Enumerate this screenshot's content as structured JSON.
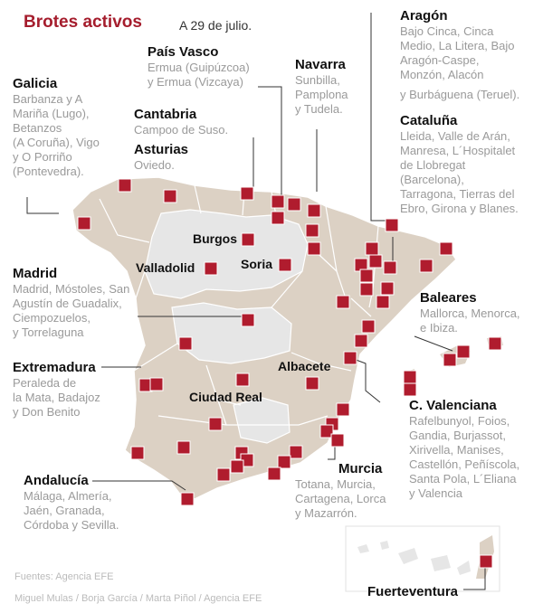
{
  "header": {
    "title": "Brotes activos",
    "date": "A 29 de julio."
  },
  "regions": {
    "aragon": {
      "name": "Aragón",
      "lines": [
        "Bajo Cinca, Cinca",
        "Medio, La Litera, Bajo",
        "Aragón-Caspe,",
        "Monzón, Alacón",
        "y Burbáguena (Teruel)."
      ]
    },
    "cataluna": {
      "name": "Cataluña",
      "lines": [
        "Lleida, Valle de Arán,",
        "Manresa, L´Hospitalet",
        "de Llobregat",
        "(Barcelona),",
        "Tarragona, Tierras del",
        "Ebro, Girona y Blanes."
      ]
    },
    "pais_vasco": {
      "name": "País Vasco",
      "lines": [
        "Ermua (Guipúzcoa)",
        "y Ermua (Vizcaya)"
      ]
    },
    "navarra": {
      "name": "Navarra",
      "lines": [
        "Sunbilla,",
        "Pamplona",
        "y Tudela."
      ]
    },
    "galicia": {
      "name": "Galicia",
      "lines": [
        "Barbanza y A",
        "Mariña (Lugo),",
        "Betanzos",
        "(A Coruña), Vigo",
        "y O Porriño",
        "(Pontevedra)."
      ]
    },
    "cantabria": {
      "name": "Cantabria",
      "lines": [
        "Campoo de Suso."
      ]
    },
    "asturias": {
      "name": "Asturias",
      "lines": [
        "Oviedo."
      ]
    },
    "madrid": {
      "name": "Madrid",
      "lines": [
        "Madrid, Móstoles, San",
        "Agustín de Guadalix,",
        "Ciempozuelos,",
        "y Torrelaguna"
      ]
    },
    "baleares": {
      "name": "Baleares",
      "lines": [
        "Mallorca, Menorca,",
        "e Ibiza."
      ]
    },
    "extremadura": {
      "name": "Extremadura",
      "lines": [
        "Peraleda de",
        "la Mata, Badajoz",
        "y Don Benito"
      ]
    },
    "c_valenciana": {
      "name": "C. Valenciana",
      "lines": [
        "Rafelbunyol, Foios,",
        "Gandia, Burjassot,",
        "Xirivella, Manises,",
        "Castellón, Peñíscola,",
        "Santa Pola, L´Eliana",
        "y Valencia"
      ]
    },
    "andalucia": {
      "name": "Andalucía",
      "lines": [
        "Málaga, Almería,",
        "Jaén, Granada,",
        "Córdoba y Sevilla."
      ]
    },
    "murcia": {
      "name": "Murcia",
      "lines": [
        "Totana, Murcia,",
        "Cartagena, Lorca",
        "y Mazarrón."
      ]
    },
    "fuerteventura": {
      "name": "Fuerteventura"
    }
  },
  "cities": {
    "burgos": "Burgos",
    "valladolid": "Valladolid",
    "soria": "Soria",
    "albacete": "Albacete",
    "ciudad_real": "Ciudad Real"
  },
  "footer": {
    "sources": "Fuentes: Agencia EFE",
    "credits": "Miguel Mulas / Borja García / Marta Piñol / Agencia EFE"
  },
  "colors": {
    "title": "#a51d2d",
    "affected_region": "#dcd1c4",
    "unaffected_region": "#e6e6e6",
    "outbreak_marker": "#b01c2e",
    "borders": "#ffffff"
  }
}
